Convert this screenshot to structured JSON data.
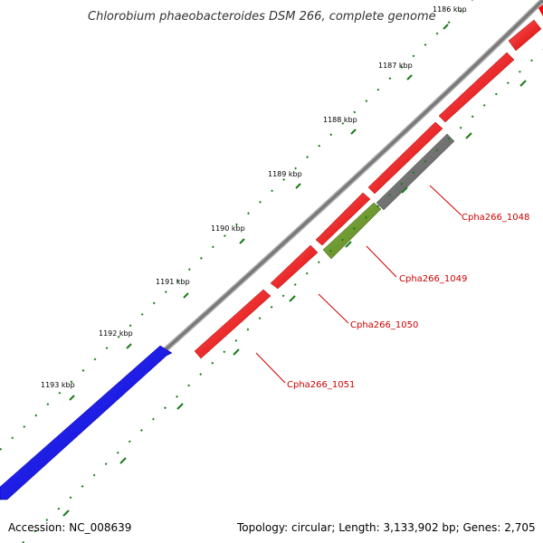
{
  "title": "Chlorobium phaeobacteroides DSM 266, complete genome",
  "accession": "Accession: NC_008639",
  "summary": "Topology: circular; Length: 3,133,902 bp; Genes: 2,705",
  "colors": {
    "backbone": "#808080",
    "forward_gene": "#ff0000",
    "reverse_gene_blue": "#0000ff",
    "rna_gene": "#6b8e23",
    "pseudo_gene": "#777777",
    "label": "#cc0000",
    "tick": "#1a7a1a"
  },
  "kbp_labels": [
    "1186 kbp",
    "1187 kbp",
    "1188 kbp",
    "1189 kbp",
    "1190 kbp",
    "1191 kbp",
    "1192 kbp",
    "1193 kbp"
  ],
  "gene_labels": [
    "Cpha266_1048",
    "Cpha266_1049",
    "Cpha266_1050",
    "Cpha266_1051"
  ]
}
